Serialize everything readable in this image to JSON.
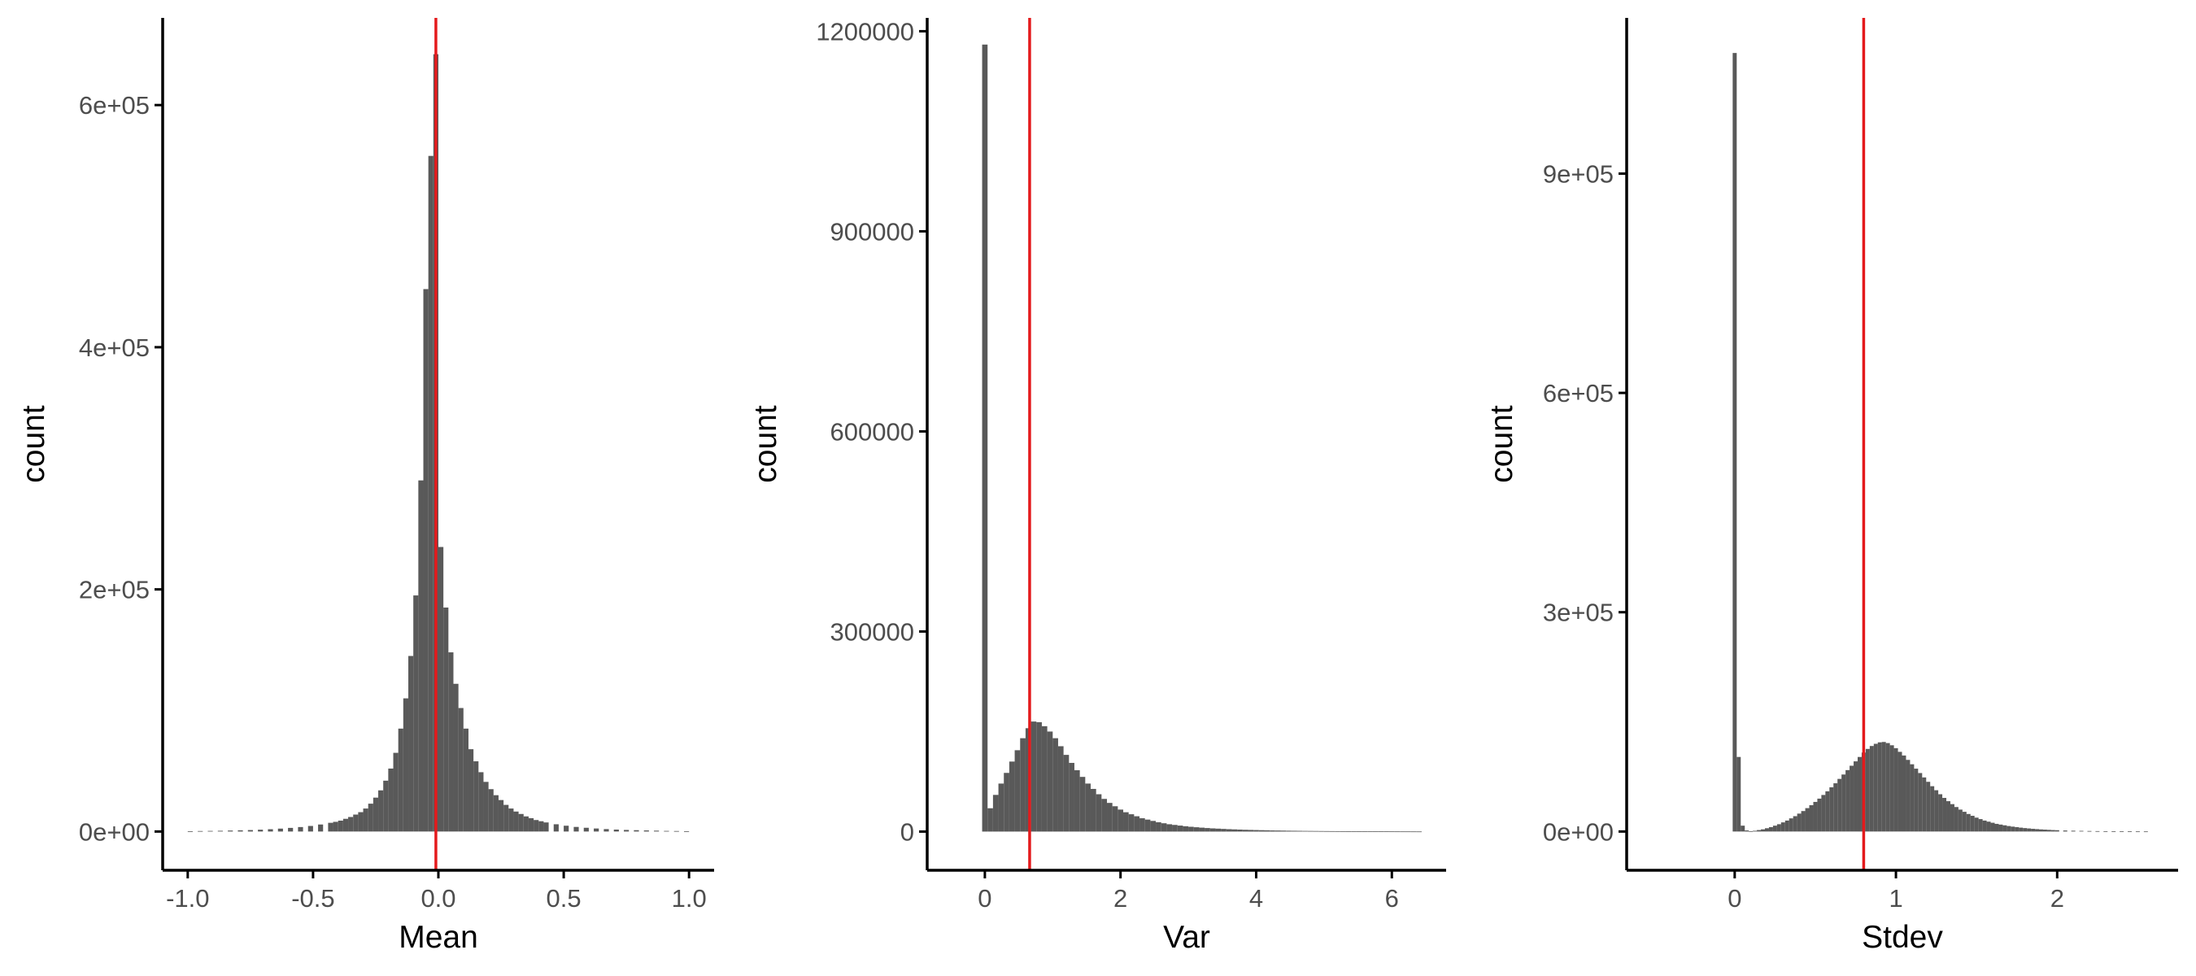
{
  "colors": {
    "bar": "#595959",
    "vline": "#e41a1c",
    "axis": "#000000"
  },
  "chart_data": [
    {
      "type": "bar",
      "xlabel": "Mean",
      "ylabel": "count",
      "xlim": [
        -1.1,
        1.1
      ],
      "ylim": [
        -32000,
        672000
      ],
      "xticks": [
        {
          "value": -1.0,
          "label": "-1.0"
        },
        {
          "value": -0.5,
          "label": "-0.5"
        },
        {
          "value": 0.0,
          "label": "0.0"
        },
        {
          "value": 0.5,
          "label": "0.5"
        },
        {
          "value": 1.0,
          "label": "1.0"
        }
      ],
      "yticks": [
        {
          "value": 0,
          "label": "0e+00"
        },
        {
          "value": 200000,
          "label": "2e+05"
        },
        {
          "value": 400000,
          "label": "4e+05"
        },
        {
          "value": 600000,
          "label": "6e+05"
        }
      ],
      "binwidth": 0.02,
      "vline": -0.01,
      "bins": [
        [
          -0.99,
          200
        ],
        [
          -0.95,
          400
        ],
        [
          -0.91,
          500
        ],
        [
          -0.87,
          600
        ],
        [
          -0.83,
          800
        ],
        [
          -0.79,
          1000
        ],
        [
          -0.75,
          1200
        ],
        [
          -0.71,
          1500
        ],
        [
          -0.67,
          1900
        ],
        [
          -0.63,
          2400
        ],
        [
          -0.59,
          3000
        ],
        [
          -0.55,
          3700
        ],
        [
          -0.51,
          4600
        ],
        [
          -0.47,
          5800
        ],
        [
          -0.43,
          7200
        ],
        [
          -0.41,
          8000
        ],
        [
          -0.39,
          9000
        ],
        [
          -0.37,
          10500
        ],
        [
          -0.35,
          12000
        ],
        [
          -0.33,
          14000
        ],
        [
          -0.31,
          16000
        ],
        [
          -0.29,
          19000
        ],
        [
          -0.27,
          23000
        ],
        [
          -0.25,
          28000
        ],
        [
          -0.23,
          34000
        ],
        [
          -0.21,
          42000
        ],
        [
          -0.19,
          52000
        ],
        [
          -0.17,
          65000
        ],
        [
          -0.15,
          85000
        ],
        [
          -0.13,
          110000
        ],
        [
          -0.11,
          145000
        ],
        [
          -0.09,
          195000
        ],
        [
          -0.07,
          290000
        ],
        [
          -0.05,
          448000
        ],
        [
          -0.03,
          558000
        ],
        [
          -0.01,
          642000
        ],
        [
          0.01,
          235000
        ],
        [
          0.03,
          185000
        ],
        [
          0.05,
          148000
        ],
        [
          0.07,
          122000
        ],
        [
          0.09,
          102000
        ],
        [
          0.11,
          85000
        ],
        [
          0.13,
          68000
        ],
        [
          0.15,
          58000
        ],
        [
          0.17,
          49000
        ],
        [
          0.19,
          41000
        ],
        [
          0.21,
          35000
        ],
        [
          0.23,
          30000
        ],
        [
          0.25,
          26000
        ],
        [
          0.27,
          22000
        ],
        [
          0.29,
          19000
        ],
        [
          0.31,
          16500
        ],
        [
          0.33,
          14500
        ],
        [
          0.35,
          12500
        ],
        [
          0.37,
          11000
        ],
        [
          0.39,
          9500
        ],
        [
          0.41,
          8500
        ],
        [
          0.43,
          7500
        ],
        [
          0.47,
          6000
        ],
        [
          0.51,
          4800
        ],
        [
          0.55,
          3800
        ],
        [
          0.59,
          3100
        ],
        [
          0.63,
          2500
        ],
        [
          0.67,
          2000
        ],
        [
          0.71,
          1600
        ],
        [
          0.75,
          1300
        ],
        [
          0.79,
          1100
        ],
        [
          0.83,
          900
        ],
        [
          0.87,
          700
        ],
        [
          0.91,
          500
        ],
        [
          0.95,
          400
        ],
        [
          0.99,
          200
        ]
      ]
    },
    {
      "type": "bar",
      "xlabel": "Var",
      "ylabel": "count",
      "xlim": [
        -0.85,
        6.8
      ],
      "ylim": [
        -58000,
        1220000
      ],
      "xticks": [
        {
          "value": 0,
          "label": "0"
        },
        {
          "value": 2,
          "label": "2"
        },
        {
          "value": 4,
          "label": "4"
        },
        {
          "value": 6,
          "label": "6"
        }
      ],
      "yticks": [
        {
          "value": 0,
          "label": "0"
        },
        {
          "value": 300000,
          "label": "300000"
        },
        {
          "value": 600000,
          "label": "600000"
        },
        {
          "value": 900000,
          "label": "900000"
        },
        {
          "value": 1200000,
          "label": "1200000"
        }
      ],
      "binwidth": 0.08,
      "vline": 0.66,
      "bins": [
        [
          0.0,
          1180000
        ],
        [
          0.08,
          35000
        ],
        [
          0.16,
          55000
        ],
        [
          0.24,
          72000
        ],
        [
          0.32,
          88000
        ],
        [
          0.4,
          105000
        ],
        [
          0.48,
          122000
        ],
        [
          0.56,
          140000
        ],
        [
          0.64,
          155000
        ],
        [
          0.72,
          165000
        ],
        [
          0.8,
          164000
        ],
        [
          0.88,
          158000
        ],
        [
          0.96,
          150000
        ],
        [
          1.04,
          140000
        ],
        [
          1.12,
          128000
        ],
        [
          1.2,
          115000
        ],
        [
          1.28,
          103000
        ],
        [
          1.36,
          92000
        ],
        [
          1.44,
          82000
        ],
        [
          1.52,
          72000
        ],
        [
          1.6,
          64000
        ],
        [
          1.68,
          56000
        ],
        [
          1.76,
          49000
        ],
        [
          1.84,
          43000
        ],
        [
          1.92,
          38000
        ],
        [
          2.0,
          33000
        ],
        [
          2.08,
          29000
        ],
        [
          2.16,
          26000
        ],
        [
          2.24,
          23000
        ],
        [
          2.32,
          20000
        ],
        [
          2.4,
          18000
        ],
        [
          2.48,
          16000
        ],
        [
          2.56,
          14000
        ],
        [
          2.64,
          12500
        ],
        [
          2.72,
          11000
        ],
        [
          2.8,
          10000
        ],
        [
          2.88,
          9000
        ],
        [
          2.96,
          8000
        ],
        [
          3.04,
          7200
        ],
        [
          3.12,
          6500
        ],
        [
          3.2,
          5900
        ],
        [
          3.28,
          5300
        ],
        [
          3.36,
          4800
        ],
        [
          3.44,
          4400
        ],
        [
          3.52,
          4000
        ],
        [
          3.6,
          3600
        ],
        [
          3.68,
          3300
        ],
        [
          3.76,
          3000
        ],
        [
          3.84,
          2700
        ],
        [
          3.92,
          2500
        ],
        [
          4.0,
          2300
        ],
        [
          4.08,
          2100
        ],
        [
          4.16,
          1900
        ],
        [
          4.24,
          1700
        ],
        [
          4.32,
          1600
        ],
        [
          4.4,
          1450
        ],
        [
          4.48,
          1300
        ],
        [
          4.56,
          1200
        ],
        [
          4.64,
          1100
        ],
        [
          4.72,
          1000
        ],
        [
          4.8,
          920
        ],
        [
          4.88,
          850
        ],
        [
          4.96,
          780
        ],
        [
          5.04,
          720
        ],
        [
          5.12,
          660
        ],
        [
          5.2,
          610
        ],
        [
          5.28,
          560
        ],
        [
          5.36,
          510
        ],
        [
          5.44,
          470
        ],
        [
          5.52,
          430
        ],
        [
          5.6,
          400
        ],
        [
          5.68,
          370
        ],
        [
          5.76,
          340
        ],
        [
          5.84,
          310
        ],
        [
          5.92,
          290
        ],
        [
          6.0,
          260
        ],
        [
          6.08,
          240
        ],
        [
          6.16,
          220
        ],
        [
          6.24,
          200
        ],
        [
          6.32,
          180
        ],
        [
          6.4,
          160
        ]
      ]
    },
    {
      "type": "bar",
      "xlabel": "Stdev",
      "ylabel": "count",
      "xlim": [
        -0.67,
        2.75
      ],
      "ylim": [
        -53000,
        1113000
      ],
      "xticks": [
        {
          "value": 0,
          "label": "0"
        },
        {
          "value": 1,
          "label": "1"
        },
        {
          "value": 2,
          "label": "2"
        }
      ],
      "yticks": [
        {
          "value": 0,
          "label": "0e+00"
        },
        {
          "value": 300000,
          "label": "3e+05"
        },
        {
          "value": 600000,
          "label": "6e+05"
        },
        {
          "value": 900000,
          "label": "9e+05"
        }
      ],
      "binwidth": 0.025,
      "vline": 0.8,
      "bins": [
        [
          0.0,
          1065000
        ],
        [
          0.025,
          102000
        ],
        [
          0.05,
          8000
        ],
        [
          0.075,
          1500
        ],
        [
          0.1,
          500
        ],
        [
          0.125,
          1000
        ],
        [
          0.15,
          2000
        ],
        [
          0.175,
          3000
        ],
        [
          0.2,
          4500
        ],
        [
          0.225,
          6000
        ],
        [
          0.25,
          8000
        ],
        [
          0.275,
          10000
        ],
        [
          0.3,
          12500
        ],
        [
          0.325,
          15000
        ],
        [
          0.35,
          18000
        ],
        [
          0.375,
          21000
        ],
        [
          0.4,
          24500
        ],
        [
          0.425,
          28000
        ],
        [
          0.45,
          32000
        ],
        [
          0.475,
          36000
        ],
        [
          0.5,
          40500
        ],
        [
          0.525,
          45000
        ],
        [
          0.55,
          50000
        ],
        [
          0.575,
          55000
        ],
        [
          0.6,
          60500
        ],
        [
          0.625,
          66000
        ],
        [
          0.65,
          72000
        ],
        [
          0.675,
          78000
        ],
        [
          0.7,
          84000
        ],
        [
          0.725,
          90000
        ],
        [
          0.75,
          96000
        ],
        [
          0.775,
          102000
        ],
        [
          0.8,
          108000
        ],
        [
          0.825,
          113000
        ],
        [
          0.85,
          117000
        ],
        [
          0.875,
          120000
        ],
        [
          0.9,
          122000
        ],
        [
          0.925,
          122500
        ],
        [
          0.95,
          121000
        ],
        [
          0.975,
          118000
        ],
        [
          1.0,
          114000
        ],
        [
          1.025,
          109000
        ],
        [
          1.05,
          104000
        ],
        [
          1.075,
          98000
        ],
        [
          1.1,
          92000
        ],
        [
          1.125,
          86000
        ],
        [
          1.15,
          80000
        ],
        [
          1.175,
          74000
        ],
        [
          1.2,
          68000
        ],
        [
          1.225,
          62000
        ],
        [
          1.25,
          56500
        ],
        [
          1.275,
          51000
        ],
        [
          1.3,
          46000
        ],
        [
          1.325,
          41500
        ],
        [
          1.35,
          37500
        ],
        [
          1.375,
          33500
        ],
        [
          1.4,
          30000
        ],
        [
          1.425,
          27000
        ],
        [
          1.45,
          24000
        ],
        [
          1.475,
          21500
        ],
        [
          1.5,
          19000
        ],
        [
          1.525,
          17000
        ],
        [
          1.55,
          15000
        ],
        [
          1.575,
          13500
        ],
        [
          1.6,
          12000
        ],
        [
          1.625,
          10500
        ],
        [
          1.65,
          9500
        ],
        [
          1.675,
          8500
        ],
        [
          1.7,
          7500
        ],
        [
          1.725,
          6700
        ],
        [
          1.75,
          6000
        ],
        [
          1.775,
          5300
        ],
        [
          1.8,
          4700
        ],
        [
          1.825,
          4200
        ],
        [
          1.85,
          3700
        ],
        [
          1.875,
          3300
        ],
        [
          1.9,
          2900
        ],
        [
          1.925,
          2600
        ],
        [
          1.95,
          2300
        ],
        [
          1.975,
          2000
        ],
        [
          2.0,
          1800
        ],
        [
          2.05,
          1400
        ],
        [
          2.1,
          1100
        ],
        [
          2.15,
          900
        ],
        [
          2.2,
          700
        ],
        [
          2.25,
          550
        ],
        [
          2.3,
          430
        ],
        [
          2.35,
          340
        ],
        [
          2.4,
          260
        ],
        [
          2.45,
          200
        ],
        [
          2.5,
          150
        ],
        [
          2.55,
          110
        ]
      ]
    }
  ]
}
